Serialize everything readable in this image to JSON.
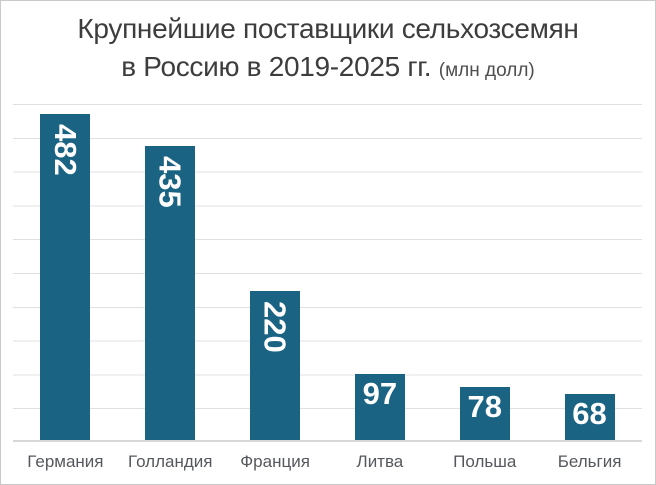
{
  "title": {
    "line1": "Крупнейшие поставщики сельхозсемян",
    "line2_main": "в Россию в 2019-2025 гг.",
    "line2_note": "(млн долл)"
  },
  "chart_data": {
    "type": "bar",
    "title": "Крупнейшие поставщики сельхозсемян в Россию в 2019-2025 гг.",
    "unit": "млн долл",
    "categories": [
      "Германия",
      "Голландия",
      "Франция",
      "Литва",
      "Польша",
      "Бельгия"
    ],
    "values": [
      482,
      435,
      220,
      97,
      78,
      68
    ],
    "ylim": [
      0,
      500
    ],
    "gridline_step": 50,
    "grid": true,
    "legend": false,
    "y_axis_tick_labels": false,
    "bar_color": "#1a6383",
    "value_label_color": "#ffffff",
    "vertical_value_labels_min": 150
  },
  "colors": {
    "background": "#ffffff",
    "frame_border": "#c9c9c9",
    "title_text": "#3d3d3d",
    "note_text": "#4e4e4e",
    "axis_label_text": "#55585c",
    "gridline": "#e0e0e0",
    "baseline": "#d8d8d8",
    "bar": "#1a6383"
  }
}
